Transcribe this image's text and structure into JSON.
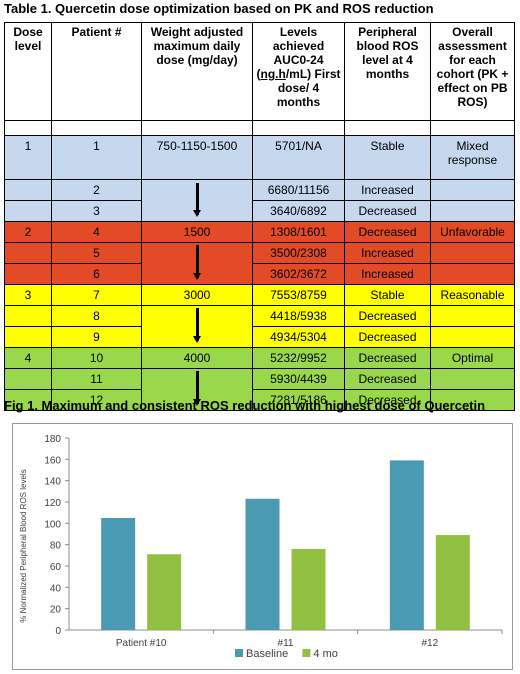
{
  "table": {
    "title": "Table 1. Quercetin dose optimization based on PK and ROS reduction",
    "headers": [
      "Dose level",
      "Patient #",
      "Weight adjusted maximum daily dose (mg/day)",
      "Levels achieved AUC0-24 (ng.h/mL) First dose/ 4 months",
      "Peripheral blood ROS level at 4 months",
      "Overall assessment for each cohort (PK + effect on PB ROS)"
    ],
    "groups": [
      {
        "color": "#c5d8ee",
        "dose_level": "1",
        "dose": "750-1150-1500",
        "assessment": "Mixed response",
        "rows": [
          {
            "patient": "1",
            "auc": "5701/NA",
            "ros": "Stable"
          },
          {
            "patient": "2",
            "auc": "6680/11156",
            "ros": "Increased"
          },
          {
            "patient": "3",
            "auc": "3640/6892",
            "ros": "Decreased"
          }
        ]
      },
      {
        "color": "#e34a26",
        "dose_level": "2",
        "dose": "1500",
        "assessment": "Unfavorable",
        "rows": [
          {
            "patient": "4",
            "auc": "1308/1601",
            "ros": "Decreased"
          },
          {
            "patient": "5",
            "auc": "3500/2308",
            "ros": "Increased"
          },
          {
            "patient": "6",
            "auc": "3602/3672",
            "ros": "Increased"
          }
        ]
      },
      {
        "color": "#ffff00",
        "dose_level": "3",
        "dose": "3000",
        "assessment": "Reasonable",
        "rows": [
          {
            "patient": "7",
            "auc": "7553/8759",
            "ros": "Stable"
          },
          {
            "patient": "8",
            "auc": "4418/5938",
            "ros": "Decreased"
          },
          {
            "patient": "9",
            "auc": "4934/5304",
            "ros": "Decreased"
          }
        ]
      },
      {
        "color": "#99d84a",
        "dose_level": "4",
        "dose": "4000",
        "assessment": "Optimal",
        "rows": [
          {
            "patient": "10",
            "auc": "5232/9952",
            "ros": "Decreased"
          },
          {
            "patient": "11",
            "auc": "5930/4439",
            "ros": "Decreased"
          },
          {
            "patient": "12",
            "auc": "7281/5186",
            "ros": "Decreased"
          }
        ]
      }
    ]
  },
  "figure": {
    "title": "Fig 1. Maximum and consistent ROS reduction with highest dose of Quercetin"
  },
  "chart_data": {
    "type": "bar",
    "categories": [
      "Patient #10",
      "#11",
      "#12"
    ],
    "series": [
      {
        "name": "Baseline",
        "color": "#4b9ab4",
        "values": [
          105,
          123,
          159
        ]
      },
      {
        "name": "4 mo",
        "color": "#92c141",
        "values": [
          71,
          76,
          89
        ]
      }
    ],
    "ylabel": "% Normalized Peripheral Blood ROS levels",
    "xlabel": "",
    "ylim": [
      0,
      180
    ],
    "yticks": [
      0,
      20,
      40,
      60,
      80,
      100,
      120,
      140,
      160,
      180
    ],
    "grid": false,
    "legend": "bottom"
  }
}
